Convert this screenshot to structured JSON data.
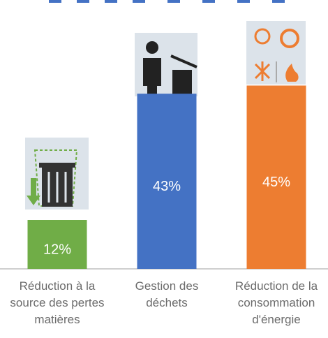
{
  "chart_data": {
    "type": "bar",
    "categories": [
      "Réduction à la source des pertes matières",
      "Gestion des déchets",
      "Réduction de la consommation d'énergie"
    ],
    "values": [
      12,
      43,
      45
    ],
    "value_labels": [
      "12%",
      "43%",
      "45%"
    ],
    "colors": [
      "#70ad47",
      "#4472c4",
      "#ed7d31"
    ],
    "ylim": [
      0,
      66
    ]
  }
}
